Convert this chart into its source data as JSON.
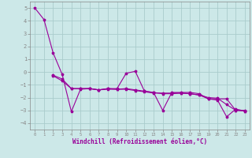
{
  "xlabel": "Windchill (Refroidissement éolien,°C)",
  "background_color": "#cce8e8",
  "grid_color": "#aacccc",
  "line_color": "#990099",
  "line3_x": [
    0,
    1,
    2,
    3,
    4,
    5,
    6,
    7,
    8,
    9,
    10,
    11,
    12,
    13,
    14,
    15,
    16,
    17,
    18,
    19,
    20,
    21,
    22,
    23
  ],
  "line3": [
    5.0,
    4.1,
    1.5,
    -0.2,
    -3.1,
    -1.35,
    -1.3,
    -1.4,
    -1.3,
    -1.3,
    -0.1,
    0.05,
    -1.5,
    -1.6,
    -3.0,
    -1.6,
    -1.6,
    -1.6,
    -1.7,
    -2.1,
    -2.1,
    -2.1,
    -3.0,
    -3.0
  ],
  "line4_x": [
    2,
    3,
    4,
    5,
    6,
    7,
    8,
    9,
    10,
    11,
    12,
    13,
    14,
    15,
    16,
    17,
    18,
    19,
    20,
    21,
    22,
    23
  ],
  "line4": [
    -0.25,
    -0.55,
    -1.3,
    -1.3,
    -1.3,
    -1.4,
    -1.35,
    -1.35,
    -1.35,
    -1.45,
    -1.55,
    -1.65,
    -1.65,
    -1.65,
    -1.65,
    -1.7,
    -1.8,
    -2.0,
    -2.05,
    -2.55,
    -3.0,
    -3.05
  ],
  "line5_x": [
    2,
    3,
    4,
    5,
    6,
    7,
    8,
    9,
    10,
    11,
    12,
    13,
    14,
    15,
    16,
    17,
    18,
    19,
    20,
    21,
    22,
    23
  ],
  "line5": [
    -0.3,
    -0.7,
    -1.3,
    -1.3,
    -1.3,
    -1.4,
    -1.3,
    -1.35,
    -1.3,
    -1.4,
    -1.5,
    -1.6,
    -1.7,
    -1.7,
    -1.65,
    -1.7,
    -1.8,
    -2.1,
    -2.2,
    -3.5,
    -2.9,
    -3.05
  ],
  "ylim": [
    -4.5,
    5.5
  ],
  "xlim": [
    -0.5,
    23.5
  ],
  "yticks": [
    -4,
    -3,
    -2,
    -1,
    0,
    1,
    2,
    3,
    4,
    5
  ],
  "xticks": [
    0,
    1,
    2,
    3,
    4,
    5,
    6,
    7,
    8,
    9,
    10,
    11,
    12,
    13,
    14,
    15,
    16,
    17,
    18,
    19,
    20,
    21,
    22,
    23
  ]
}
